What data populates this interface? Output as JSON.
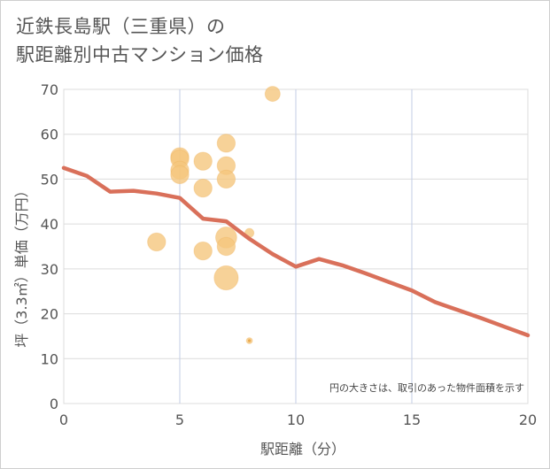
{
  "title_line1": "近鉄長島駅（三重県）の",
  "title_line2": "駅距離別中古マンション価格",
  "chart_data": {
    "type": "scatter",
    "title": "近鉄長島駅（三重県）の駅距離別中古マンション価格",
    "xlabel": "駅距離（分）",
    "ylabel": "坪（3.3㎡）単価（万円）",
    "xlim": [
      0,
      20
    ],
    "ylim": [
      0,
      70
    ],
    "xticks": [
      0,
      5,
      10,
      15,
      20
    ],
    "yticks": [
      0,
      10,
      20,
      30,
      40,
      50,
      60,
      70
    ],
    "grid": true,
    "note": "円の大きさは、取引のあった物件面積を示す",
    "bubble_color": "#f5c77e",
    "line_color": "#d9705a",
    "points": [
      {
        "x": 4,
        "y": 36,
        "size": 3
      },
      {
        "x": 5,
        "y": 55,
        "size": 3
      },
      {
        "x": 5,
        "y": 54.5,
        "size": 3
      },
      {
        "x": 5,
        "y": 52,
        "size": 3
      },
      {
        "x": 5,
        "y": 51,
        "size": 3
      },
      {
        "x": 6,
        "y": 54,
        "size": 3
      },
      {
        "x": 6,
        "y": 48,
        "size": 3
      },
      {
        "x": 6,
        "y": 34,
        "size": 3
      },
      {
        "x": 7,
        "y": 58,
        "size": 3
      },
      {
        "x": 7,
        "y": 53,
        "size": 3
      },
      {
        "x": 7,
        "y": 50,
        "size": 3
      },
      {
        "x": 7,
        "y": 37,
        "size": 3.5
      },
      {
        "x": 7,
        "y": 35,
        "size": 3
      },
      {
        "x": 7,
        "y": 28,
        "size": 4
      },
      {
        "x": 8,
        "y": 38,
        "size": 1.5
      },
      {
        "x": 8,
        "y": 14,
        "size": 1
      },
      {
        "x": 9,
        "y": 69,
        "size": 2.5
      }
    ],
    "trend": {
      "x": [
        0,
        1,
        2,
        3,
        4,
        5,
        6,
        7,
        8,
        9,
        10,
        11,
        12,
        13,
        14,
        15,
        16,
        17,
        18,
        19,
        20
      ],
      "y": [
        52.5,
        50.7,
        47.2,
        47.4,
        46.8,
        45.8,
        41.2,
        40.6,
        36.7,
        33.3,
        30.5,
        32.2,
        30.8,
        29,
        27.1,
        25.2,
        22.6,
        20.8,
        19,
        17.1,
        15.2
      ]
    }
  }
}
